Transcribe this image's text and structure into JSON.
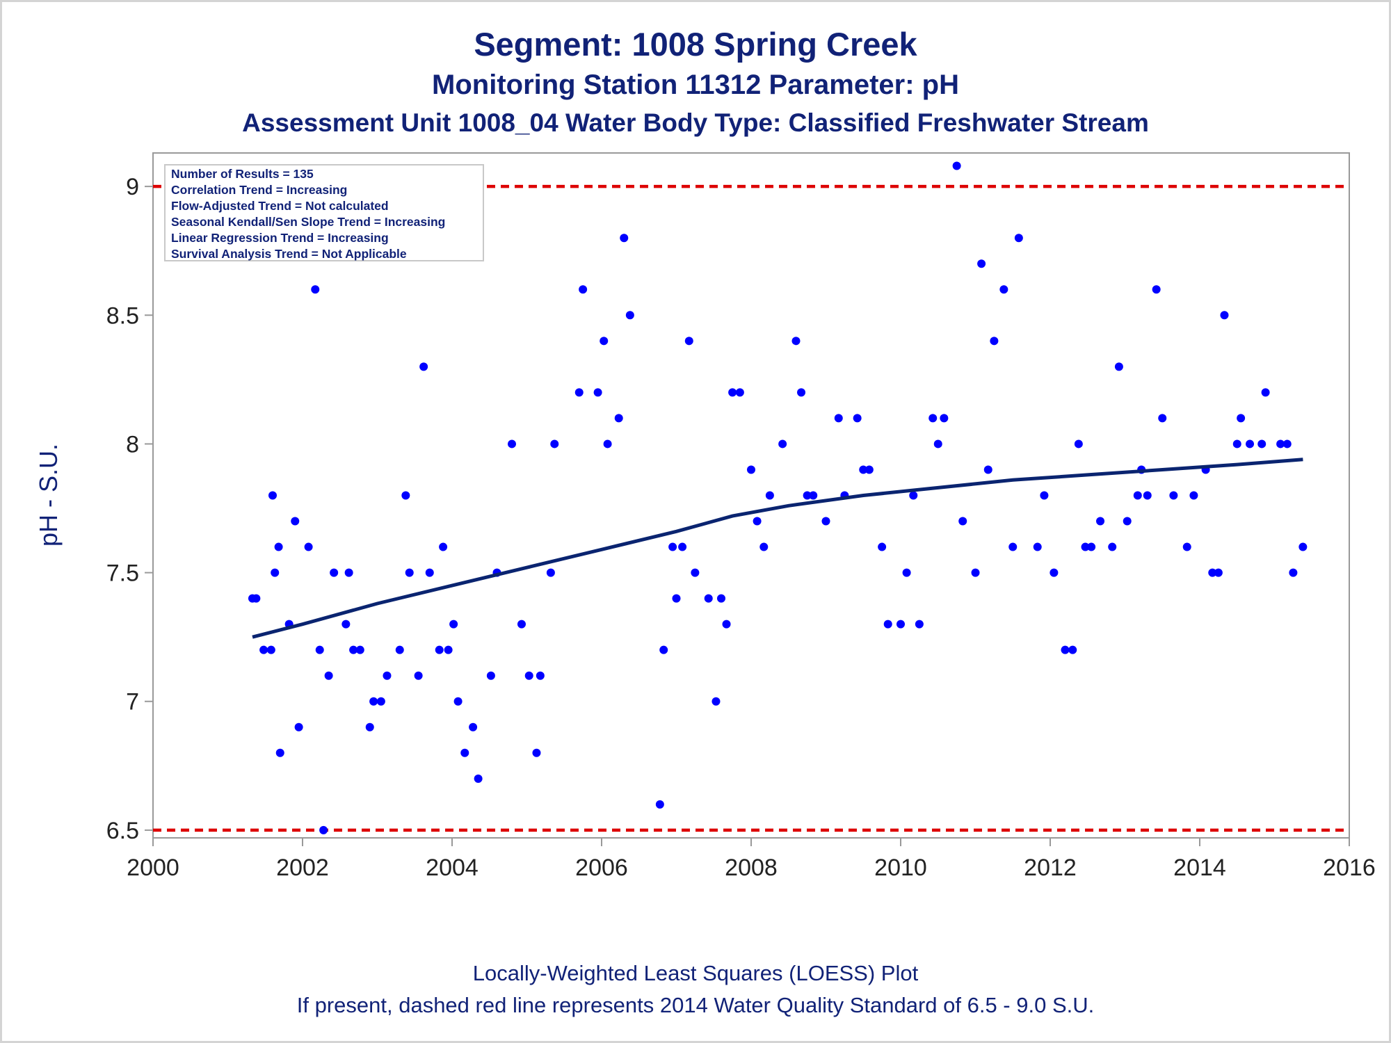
{
  "title": "Segment: 1008  Spring Creek",
  "subtitle1": "Monitoring Station 11312 Parameter: pH",
  "subtitle2": "Assessment Unit 1008_04   Water Body Type: Classified Freshwater Stream",
  "footnote1": "Locally-Weighted Least Squares (LOESS) Plot",
  "footnote2": "If present, dashed red line represents 2014 Water Quality Standard of 6.5 - 9.0 S.U.",
  "legend": [
    "Number of Results = 135",
    "Correlation Trend = Increasing",
    "Flow-Adjusted Trend = Not calculated",
    "Seasonal Kendall/Sen Slope Trend = Increasing",
    "Linear Regression Trend = Increasing",
    "Survival Analysis Trend = Not Applicable"
  ],
  "colors": {
    "points": "#0000ff",
    "trend_line": "#0a2470",
    "standard_line": "#dd0000",
    "text": "#112277",
    "axis": "#999999"
  },
  "chart_data": {
    "type": "scatter",
    "xlabel": "",
    "ylabel": "pH - S.U.",
    "xlim": [
      2000,
      2016
    ],
    "ylim": [
      6.47,
      9.13
    ],
    "xticks": [
      "2000",
      "2002",
      "2004",
      "2006",
      "2008",
      "2010",
      "2012",
      "2014",
      "2016"
    ],
    "yticks": [
      "6.5",
      "7",
      "7.5",
      "8",
      "8.5",
      "9"
    ],
    "grid": false,
    "reference_lines": [
      {
        "y": 9.0,
        "style": "dashed",
        "color": "#dd0000"
      },
      {
        "y": 6.5,
        "style": "dashed",
        "color": "#dd0000"
      }
    ],
    "points": [
      [
        2001.33,
        7.4
      ],
      [
        2001.38,
        7.4
      ],
      [
        2001.48,
        7.2
      ],
      [
        2001.58,
        7.2
      ],
      [
        2001.6,
        7.8
      ],
      [
        2001.63,
        7.5
      ],
      [
        2001.68,
        7.6
      ],
      [
        2001.7,
        6.8
      ],
      [
        2001.82,
        7.3
      ],
      [
        2001.9,
        7.7
      ],
      [
        2001.95,
        6.9
      ],
      [
        2002.08,
        7.6
      ],
      [
        2002.17,
        8.6
      ],
      [
        2002.23,
        7.2
      ],
      [
        2002.28,
        6.5
      ],
      [
        2002.35,
        7.1
      ],
      [
        2002.42,
        7.5
      ],
      [
        2002.58,
        7.3
      ],
      [
        2002.62,
        7.5
      ],
      [
        2002.68,
        7.2
      ],
      [
        2002.77,
        7.2
      ],
      [
        2002.9,
        6.9
      ],
      [
        2002.95,
        7.0
      ],
      [
        2003.05,
        7.0
      ],
      [
        2003.13,
        7.1
      ],
      [
        2003.3,
        7.2
      ],
      [
        2003.38,
        7.8
      ],
      [
        2003.43,
        7.5
      ],
      [
        2003.55,
        7.1
      ],
      [
        2003.62,
        8.3
      ],
      [
        2003.7,
        7.5
      ],
      [
        2003.83,
        7.2
      ],
      [
        2003.88,
        7.6
      ],
      [
        2003.95,
        7.2
      ],
      [
        2004.02,
        7.3
      ],
      [
        2004.08,
        7.0
      ],
      [
        2004.17,
        6.8
      ],
      [
        2004.28,
        6.9
      ],
      [
        2004.35,
        6.7
      ],
      [
        2004.52,
        7.1
      ],
      [
        2004.6,
        7.5
      ],
      [
        2004.8,
        8.0
      ],
      [
        2004.93,
        7.3
      ],
      [
        2005.03,
        7.1
      ],
      [
        2005.13,
        6.8
      ],
      [
        2005.18,
        7.1
      ],
      [
        2005.32,
        7.5
      ],
      [
        2005.37,
        8.0
      ],
      [
        2005.7,
        8.2
      ],
      [
        2005.75,
        8.6
      ],
      [
        2005.95,
        8.2
      ],
      [
        2006.03,
        8.4
      ],
      [
        2006.08,
        8.0
      ],
      [
        2006.23,
        8.1
      ],
      [
        2006.3,
        8.8
      ],
      [
        2006.38,
        8.5
      ],
      [
        2006.78,
        6.6
      ],
      [
        2006.83,
        7.2
      ],
      [
        2006.95,
        7.6
      ],
      [
        2007.0,
        7.4
      ],
      [
        2007.08,
        7.6
      ],
      [
        2007.17,
        8.4
      ],
      [
        2007.25,
        7.5
      ],
      [
        2007.43,
        7.4
      ],
      [
        2007.53,
        7.0
      ],
      [
        2007.6,
        7.4
      ],
      [
        2007.67,
        7.3
      ],
      [
        2007.75,
        8.2
      ],
      [
        2007.85,
        8.2
      ],
      [
        2008.0,
        7.9
      ],
      [
        2008.08,
        7.7
      ],
      [
        2008.17,
        7.6
      ],
      [
        2008.25,
        7.8
      ],
      [
        2008.42,
        8.0
      ],
      [
        2008.6,
        8.4
      ],
      [
        2008.67,
        8.2
      ],
      [
        2008.75,
        7.8
      ],
      [
        2008.83,
        7.8
      ],
      [
        2009.0,
        7.7
      ],
      [
        2009.17,
        8.1
      ],
      [
        2009.25,
        7.8
      ],
      [
        2009.42,
        8.1
      ],
      [
        2009.5,
        7.9
      ],
      [
        2009.58,
        7.9
      ],
      [
        2009.75,
        7.6
      ],
      [
        2009.83,
        7.3
      ],
      [
        2010.0,
        7.3
      ],
      [
        2010.08,
        7.5
      ],
      [
        2010.17,
        7.8
      ],
      [
        2010.25,
        7.3
      ],
      [
        2010.43,
        8.1
      ],
      [
        2010.5,
        8.0
      ],
      [
        2010.58,
        8.1
      ],
      [
        2010.75,
        9.08
      ],
      [
        2010.83,
        7.7
      ],
      [
        2011.0,
        7.5
      ],
      [
        2011.08,
        8.7
      ],
      [
        2011.17,
        7.9
      ],
      [
        2011.25,
        8.4
      ],
      [
        2011.38,
        8.6
      ],
      [
        2011.5,
        7.6
      ],
      [
        2011.58,
        8.8
      ],
      [
        2011.83,
        7.6
      ],
      [
        2011.92,
        7.8
      ],
      [
        2012.05,
        7.5
      ],
      [
        2012.2,
        7.2
      ],
      [
        2012.3,
        7.2
      ],
      [
        2012.38,
        8.0
      ],
      [
        2012.47,
        7.6
      ],
      [
        2012.55,
        7.6
      ],
      [
        2012.67,
        7.7
      ],
      [
        2012.83,
        7.6
      ],
      [
        2012.92,
        8.3
      ],
      [
        2013.03,
        7.7
      ],
      [
        2013.17,
        7.8
      ],
      [
        2013.22,
        7.9
      ],
      [
        2013.3,
        7.8
      ],
      [
        2013.42,
        8.6
      ],
      [
        2013.5,
        8.1
      ],
      [
        2013.65,
        7.8
      ],
      [
        2013.83,
        7.6
      ],
      [
        2013.92,
        7.8
      ],
      [
        2014.08,
        7.9
      ],
      [
        2014.17,
        7.5
      ],
      [
        2014.25,
        7.5
      ],
      [
        2014.33,
        8.5
      ],
      [
        2014.5,
        8.0
      ],
      [
        2014.55,
        8.1
      ],
      [
        2014.67,
        8.0
      ],
      [
        2014.83,
        8.0
      ],
      [
        2014.88,
        8.2
      ],
      [
        2015.08,
        8.0
      ],
      [
        2015.17,
        8.0
      ],
      [
        2015.25,
        7.5
      ],
      [
        2015.38,
        7.6
      ]
    ],
    "loess_line": [
      [
        2001.33,
        7.25
      ],
      [
        2002.0,
        7.3
      ],
      [
        2003.0,
        7.38
      ],
      [
        2004.0,
        7.45
      ],
      [
        2005.0,
        7.52
      ],
      [
        2006.0,
        7.59
      ],
      [
        2007.0,
        7.66
      ],
      [
        2007.75,
        7.72
      ],
      [
        2008.5,
        7.76
      ],
      [
        2009.5,
        7.8
      ],
      [
        2010.5,
        7.83
      ],
      [
        2011.5,
        7.86
      ],
      [
        2012.5,
        7.88
      ],
      [
        2013.5,
        7.9
      ],
      [
        2014.5,
        7.92
      ],
      [
        2015.38,
        7.94
      ]
    ]
  }
}
